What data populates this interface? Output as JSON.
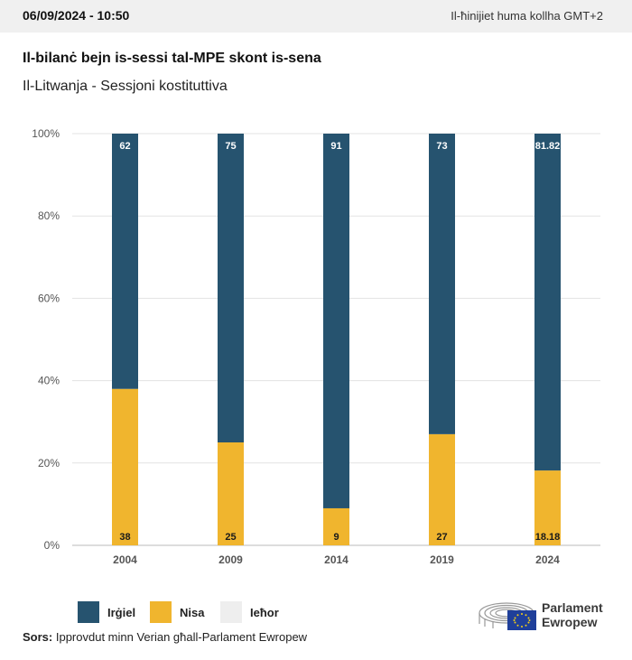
{
  "header": {
    "datetime": "06/09/2024 - 10:50",
    "timezone_note": "Il-ħinijiet huma kollha GMT+2"
  },
  "title": "Il-bilanċ bejn is-sessi tal-MPE skont is-sena",
  "subtitle": "Il-Litwanja - Sessjoni kostituttiva",
  "chart_data": {
    "type": "bar",
    "stacked": true,
    "categories": [
      "2004",
      "2009",
      "2014",
      "2019",
      "2024"
    ],
    "series": [
      {
        "name": "Nisa",
        "color": "#f0b52e",
        "values": [
          38,
          25,
          9,
          27,
          18.18
        ],
        "value_labels": [
          "38",
          "25",
          "9",
          "27",
          "18.18"
        ]
      },
      {
        "name": "Irġiel",
        "color": "#26536f",
        "values": [
          62,
          75,
          91,
          73,
          81.82
        ],
        "value_labels": [
          "62",
          "75",
          "91",
          "73",
          "81.82"
        ]
      }
    ],
    "ylim": [
      0,
      100
    ],
    "yticks": [
      0,
      20,
      40,
      60,
      80,
      100
    ],
    "ytick_labels": [
      "0%",
      "20%",
      "40%",
      "60%",
      "80%",
      "100%"
    ],
    "grid": true
  },
  "legend": [
    {
      "label": "Irġiel",
      "color": "#26536f"
    },
    {
      "label": "Nisa",
      "color": "#f0b52e"
    },
    {
      "label": "Ieħor",
      "color": "#eeeeee"
    }
  ],
  "source": {
    "prefix": "Sors:",
    "text": "Ipprovdut minn Verian għall-Parlament Ewropew"
  },
  "logo": {
    "line1": "Parlament",
    "line2": "Ewropew"
  }
}
